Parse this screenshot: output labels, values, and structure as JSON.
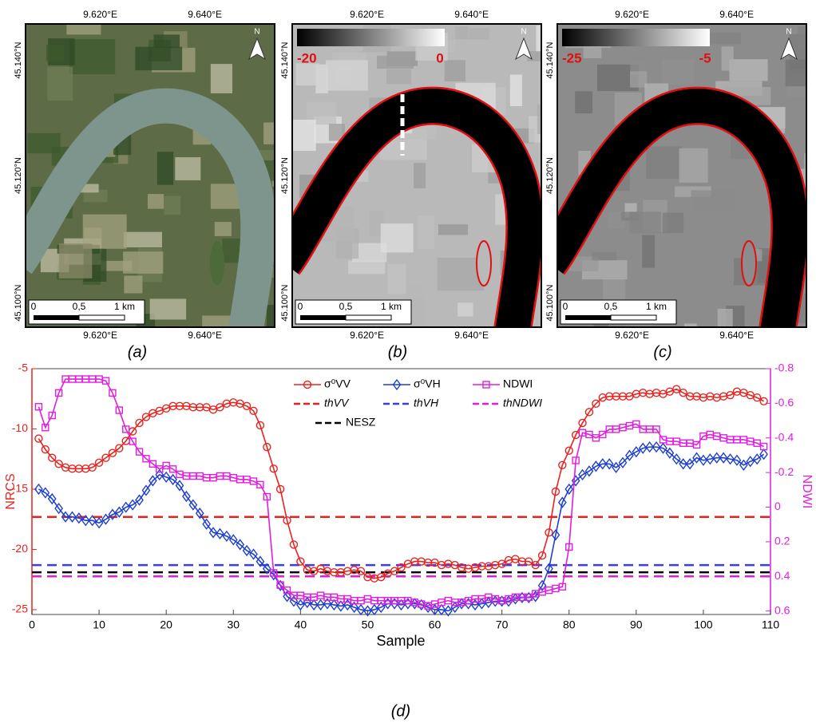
{
  "panels": [
    {
      "caption": "(a)",
      "top_ticks": [
        "9.620°E",
        "9.640°E"
      ],
      "bottom_ticks": [
        "9.620°E",
        "9.640°E"
      ],
      "left_ticks": [
        "45.140°N",
        "45.120°N",
        "45.100°N"
      ],
      "scale_labels": [
        "0",
        "0,5",
        "1 km"
      ],
      "north": "N"
    },
    {
      "caption": "(b)",
      "top_ticks": [
        "9.620°E",
        "9.640°E"
      ],
      "bottom_ticks": [
        "9.620°E",
        "9.640°E"
      ],
      "left_ticks": [
        "45.140°N",
        "45.120°N",
        "45.100°N"
      ],
      "scale_labels": [
        "0",
        "0,5",
        "1 km"
      ],
      "north": "N",
      "colorbar": [
        "-20",
        "0"
      ]
    },
    {
      "caption": "(c)",
      "top_ticks": [
        "9.620°E",
        "9.640°E"
      ],
      "bottom_ticks": [
        "9.620°E",
        "9.640°E"
      ],
      "left_ticks": [
        "45.140°N",
        "45.120°N",
        "45.100°N"
      ],
      "scale_labels": [
        "0",
        "0,5",
        "1 km"
      ],
      "north": "N",
      "colorbar": [
        "-25",
        "-5"
      ]
    }
  ],
  "chart_data": {
    "type": "line",
    "caption": "(d)",
    "x_label": "Sample",
    "y_label": "NRCS",
    "y2_label": "NDWI",
    "xlim": [
      0,
      110
    ],
    "xticks": [
      0,
      10,
      20,
      30,
      40,
      50,
      60,
      70,
      80,
      90,
      100,
      110
    ],
    "ylim": [
      -25.4,
      -5
    ],
    "yticks": [
      -5,
      -10,
      -15,
      -20,
      -25
    ],
    "y2lim": [
      0.62,
      -0.8
    ],
    "y2ticks": [
      -0.8,
      -0.6,
      -0.4,
      -0.2,
      0,
      0.2,
      0.4,
      0.6
    ],
    "x": [
      1,
      2,
      3,
      4,
      5,
      6,
      7,
      8,
      9,
      10,
      11,
      12,
      13,
      14,
      15,
      16,
      17,
      18,
      19,
      20,
      21,
      22,
      23,
      24,
      25,
      26,
      27,
      28,
      29,
      30,
      31,
      32,
      33,
      34,
      35,
      36,
      37,
      38,
      39,
      40,
      41,
      42,
      43,
      44,
      45,
      46,
      47,
      48,
      49,
      50,
      51,
      52,
      53,
      54,
      55,
      56,
      57,
      58,
      59,
      60,
      61,
      62,
      63,
      64,
      65,
      66,
      67,
      68,
      69,
      70,
      71,
      72,
      73,
      74,
      75,
      76,
      77,
      78,
      79,
      80,
      81,
      82,
      83,
      84,
      85,
      86,
      87,
      88,
      89,
      90,
      91,
      92,
      93,
      94,
      95,
      96,
      97,
      98,
      99,
      100,
      101,
      102,
      103,
      104,
      105,
      106,
      107,
      108,
      109
    ],
    "series": [
      {
        "name": "σ⁰VV",
        "color": "#e8231f",
        "marker": "circle",
        "values": [
          -10.8,
          -11.7,
          -12.4,
          -12.9,
          -13.2,
          -13.3,
          -13.3,
          -13.3,
          -13.2,
          -12.8,
          -12.4,
          -12.0,
          -11.6,
          -11.0,
          -10.2,
          -9.5,
          -9.0,
          -8.7,
          -8.5,
          -8.3,
          -8.1,
          -8.1,
          -8.1,
          -8.2,
          -8.2,
          -8.2,
          -8.4,
          -8.2,
          -7.9,
          -7.8,
          -7.9,
          -8.1,
          -8.5,
          -9.7,
          -11.5,
          -13.3,
          -15.0,
          -17.6,
          -19.6,
          -21.0,
          -21.7,
          -21.8,
          -21.6,
          -21.8,
          -21.9,
          -21.9,
          -21.8,
          -21.7,
          -21.8,
          -22.3,
          -22.4,
          -22.3,
          -22.0,
          -21.8,
          -21.5,
          -21.2,
          -21.0,
          -21.0,
          -21.1,
          -21.1,
          -21.3,
          -21.2,
          -21.3,
          -21.5,
          -21.6,
          -21.5,
          -21.4,
          -21.4,
          -21.3,
          -21.2,
          -20.9,
          -20.8,
          -21.0,
          -21.0,
          -21.3,
          -20.5,
          -18.6,
          -15.2,
          -13.0,
          -11.8,
          -10.5,
          -9.5,
          -8.6,
          -7.9,
          -7.4,
          -7.3,
          -7.3,
          -7.3,
          -7.3,
          -7.1,
          -7.0,
          -7.1,
          -7.0,
          -7.1,
          -6.9,
          -6.7,
          -7.0,
          -7.3,
          -7.3,
          -7.4,
          -7.3,
          -7.4,
          -7.3,
          -7.2,
          -6.9,
          -7.0,
          -7.2,
          -7.4,
          -7.7
        ]
      },
      {
        "name": "σ⁰VH",
        "color": "#1f3fd0",
        "marker": "diamond",
        "values": [
          -15.0,
          -15.3,
          -15.8,
          -16.6,
          -17.3,
          -17.3,
          -17.4,
          -17.6,
          -17.6,
          -17.8,
          -17.5,
          -17.1,
          -16.9,
          -16.5,
          -16.3,
          -15.9,
          -15.1,
          -14.3,
          -13.8,
          -14.0,
          -14.2,
          -14.7,
          -15.6,
          -16.3,
          -17.0,
          -17.9,
          -18.6,
          -18.7,
          -18.9,
          -19.2,
          -19.6,
          -20.1,
          -20.4,
          -21.0,
          -21.6,
          -22.1,
          -23.0,
          -23.9,
          -24.3,
          -24.6,
          -24.4,
          -24.6,
          -24.6,
          -24.5,
          -24.6,
          -24.7,
          -24.6,
          -24.8,
          -25.0,
          -25.1,
          -25.0,
          -24.8,
          -24.5,
          -24.5,
          -24.6,
          -24.5,
          -24.5,
          -24.6,
          -24.8,
          -25.0,
          -25.0,
          -25.1,
          -24.8,
          -24.5,
          -24.5,
          -24.6,
          -24.5,
          -24.4,
          -24.3,
          -24.3,
          -24.3,
          -24.1,
          -24.0,
          -24.0,
          -23.9,
          -23.0,
          -21.6,
          -18.8,
          -16.1,
          -15.0,
          -14.3,
          -13.8,
          -13.5,
          -13.1,
          -12.9,
          -12.9,
          -13.2,
          -12.8,
          -12.2,
          -11.9,
          -11.6,
          -11.5,
          -11.5,
          -11.6,
          -12.0,
          -12.5,
          -12.9,
          -12.9,
          -12.4,
          -12.6,
          -12.5,
          -12.4,
          -12.4,
          -12.5,
          -12.6,
          -13.0,
          -12.7,
          -12.5,
          -12.1
        ]
      },
      {
        "name": "NDWI",
        "color": "#e01ee0",
        "marker": "square",
        "axis": "y2",
        "values": [
          -0.58,
          -0.46,
          -0.53,
          -0.66,
          -0.74,
          -0.74,
          -0.74,
          -0.74,
          -0.74,
          -0.74,
          -0.73,
          -0.66,
          -0.56,
          -0.45,
          -0.38,
          -0.32,
          -0.28,
          -0.25,
          -0.22,
          -0.24,
          -0.22,
          -0.19,
          -0.18,
          -0.18,
          -0.18,
          -0.17,
          -0.17,
          -0.18,
          -0.18,
          -0.17,
          -0.16,
          -0.16,
          -0.15,
          -0.13,
          -0.06,
          0.38,
          0.45,
          0.48,
          0.51,
          0.51,
          0.52,
          0.52,
          0.51,
          0.52,
          0.52,
          0.53,
          0.53,
          0.54,
          0.54,
          0.53,
          0.54,
          0.54,
          0.54,
          0.54,
          0.54,
          0.54,
          0.55,
          0.56,
          0.57,
          0.56,
          0.55,
          0.54,
          0.55,
          0.55,
          0.54,
          0.53,
          0.53,
          0.52,
          0.53,
          0.54,
          0.53,
          0.52,
          0.52,
          0.52,
          0.5,
          0.49,
          0.48,
          0.47,
          0.46,
          0.23,
          -0.27,
          -0.43,
          -0.42,
          -0.4,
          -0.42,
          -0.45,
          -0.45,
          -0.46,
          -0.47,
          -0.48,
          -0.45,
          -0.45,
          -0.45,
          -0.39,
          -0.38,
          -0.38,
          -0.37,
          -0.37,
          -0.36,
          -0.41,
          -0.42,
          -0.41,
          -0.4,
          -0.39,
          -0.39,
          -0.39,
          -0.38,
          -0.37,
          -0.35
        ]
      }
    ],
    "hlines": [
      {
        "name": "thVV",
        "color": "#e8231f",
        "value": -17.3
      },
      {
        "name": "thVH",
        "color": "#3b3bf0",
        "value": -21.3
      },
      {
        "name": "thNDWI",
        "color": "#e01ee0",
        "value": 0.4,
        "axis": "y2"
      },
      {
        "name": "NESZ",
        "color": "#000000",
        "value": -21.9
      }
    ]
  }
}
